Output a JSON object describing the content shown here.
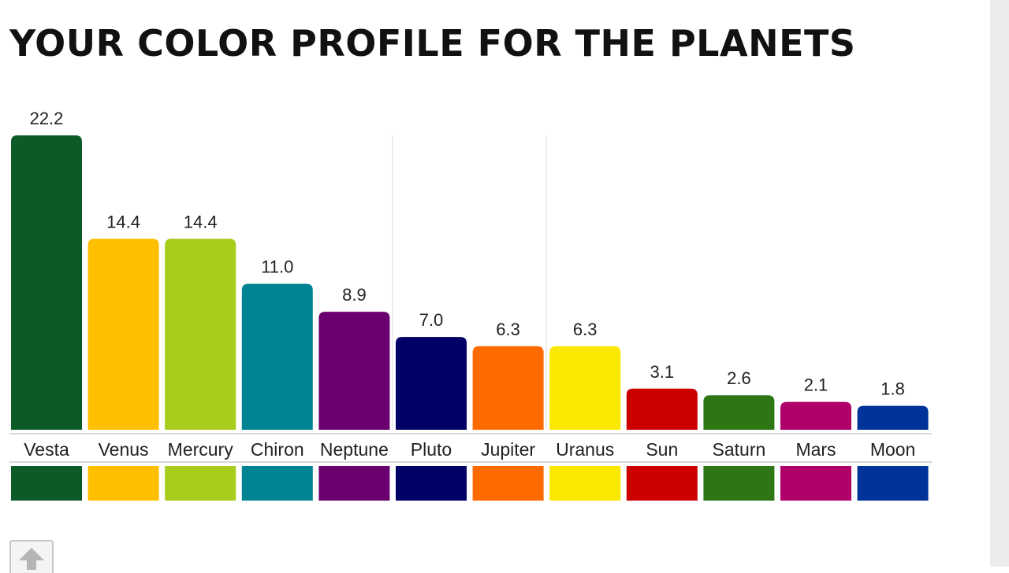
{
  "page": {
    "title": "YOUR COLOR PROFILE FOR THE PLANETS"
  },
  "chart_data": {
    "type": "bar",
    "title": "",
    "xlabel": "",
    "ylabel": "",
    "ylim": [
      0,
      22.2
    ],
    "grid": false,
    "categories": [
      "Vesta",
      "Venus",
      "Mercury",
      "Chiron",
      "Neptune",
      "Pluto",
      "Jupiter",
      "Uranus",
      "Sun",
      "Saturn",
      "Mars",
      "Moon"
    ],
    "values": [
      22.2,
      14.4,
      14.4,
      11.0,
      8.9,
      7.0,
      6.3,
      6.3,
      3.1,
      2.6,
      2.1,
      1.8
    ],
    "value_labels": [
      "22.2",
      "14.4",
      "14.4",
      "11.0",
      "8.9",
      "7.0",
      "6.3",
      "6.3",
      "3.1",
      "2.6",
      "2.1",
      "1.8"
    ],
    "colors": [
      "#0b5a28",
      "#fdbf00",
      "#a8cc1c",
      "#008493",
      "#6a0070",
      "#000066",
      "#ff6a00",
      "#fbe800",
      "#cc0000",
      "#2e7614",
      "#b0006a",
      "#003399"
    ]
  },
  "icons": {
    "scroll_top": "arrow-up-icon"
  }
}
